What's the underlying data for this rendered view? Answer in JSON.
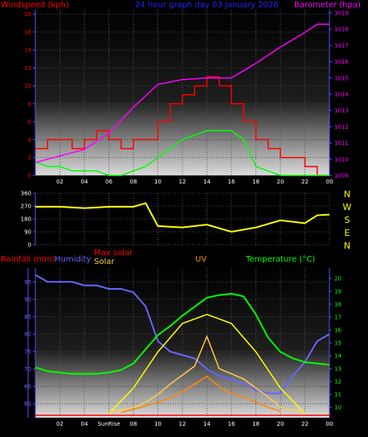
{
  "title": "24 hour graph day   03 January 2026",
  "colors": {
    "wind": "#ff0000",
    "gust": "#00ff00",
    "baro": "#ff00ff",
    "dir": "#ffff00",
    "rain": "#ff0000",
    "hum": "#6666ff",
    "maxsolar": "#ffff00",
    "solar": "#ffcc44",
    "uv": "#ff8800",
    "temp": "#00ff00",
    "axis": "#5555ff",
    "text": "#ffffff"
  },
  "labels": {
    "windspeed": "Windspeed (kph)",
    "barometer": "Barometer (hpa)",
    "rainfall": "Rainfall (mm)",
    "humidity": "Humidity",
    "maxsolar": "Max solar",
    "solar": "Solar",
    "uv": "UV",
    "temperature": "Temperature (°C)",
    "sunrise": "SunRise"
  },
  "compass": [
    "N",
    "W",
    "S",
    "E",
    "N"
  ],
  "chart_data": [
    {
      "type": "line",
      "title": "24 hour graph day   03 January 2026",
      "xticks": [
        "02",
        "04",
        "06",
        "08",
        "10",
        "12",
        "14",
        "16",
        "18",
        "20",
        "22",
        "00"
      ],
      "ylabel_left": "Windspeed (kph)",
      "ylim_left": [
        0,
        18.5
      ],
      "yticks_left": [
        0,
        2,
        4,
        6,
        8,
        10,
        12,
        14,
        16,
        18
      ],
      "ylabel_right": "Barometer (hpa)",
      "ylim_right": [
        1009,
        1019.2
      ],
      "yticks_right": [
        1009,
        1010,
        1011,
        1012,
        1013,
        1014,
        1015,
        1016,
        1017,
        1018,
        1019
      ],
      "series": [
        {
          "name": "Windspeed (kph)",
          "axis": "left",
          "x": [
            0,
            1,
            2,
            3,
            4,
            5,
            6,
            7,
            8,
            9,
            10,
            11,
            12,
            13,
            14,
            15,
            16,
            17,
            18,
            19,
            20,
            21,
            22,
            23,
            24
          ],
          "values": [
            3,
            4,
            4,
            3,
            4,
            5,
            4,
            3,
            4,
            4,
            6,
            8,
            9,
            10,
            11,
            10,
            8,
            6,
            4,
            3,
            2,
            2,
            1,
            0,
            0
          ]
        },
        {
          "name": "Gust",
          "axis": "left",
          "x": [
            0,
            1,
            2,
            3,
            4,
            5,
            6,
            7,
            8,
            9,
            10,
            11,
            12,
            13,
            14,
            15,
            16,
            17,
            18,
            19,
            20,
            21,
            22,
            23,
            24
          ],
          "values": [
            1.5,
            1,
            1,
            0.5,
            0.5,
            0.5,
            0,
            0,
            0.5,
            1,
            2,
            3,
            4,
            4.5,
            5,
            5,
            5,
            4,
            1,
            0.5,
            0,
            0,
            0,
            0,
            0
          ]
        },
        {
          "name": "Barometer (hpa)",
          "axis": "right",
          "x": [
            0,
            2,
            4,
            6,
            8,
            10,
            12,
            14,
            16,
            18,
            20,
            22,
            23,
            24
          ],
          "values": [
            1009.8,
            1010.2,
            1010.6,
            1011.6,
            1013.2,
            1014.6,
            1014.9,
            1015.0,
            1015.0,
            1015.9,
            1016.9,
            1017.8,
            1018.3,
            1018.3
          ]
        }
      ]
    },
    {
      "type": "line",
      "xticks": [
        "02",
        "04",
        "06",
        "08",
        "10",
        "12",
        "14",
        "16",
        "18",
        "20",
        "22",
        "00"
      ],
      "ylim": [
        0,
        360
      ],
      "yticks": [
        0,
        90,
        180,
        270,
        360
      ],
      "series": [
        {
          "name": "Wind direction",
          "x": [
            0,
            2,
            4,
            6,
            8,
            9,
            10,
            12,
            14,
            16,
            18,
            20,
            22,
            23,
            24
          ],
          "values": [
            265,
            265,
            255,
            265,
            265,
            290,
            130,
            120,
            140,
            90,
            120,
            170,
            150,
            205,
            210
          ]
        }
      ]
    },
    {
      "type": "line",
      "xticks": [
        "02",
        "04",
        "SunRise",
        "08",
        "10",
        "12",
        "14",
        "16",
        "18",
        "20",
        "22",
        "00"
      ],
      "ylabel_left": "Humidity",
      "ylim_left": [
        56,
        99
      ],
      "yticks_left": [
        60,
        65,
        70,
        75,
        80,
        85,
        90,
        95
      ],
      "ylabel_right": "Temperature (°C)",
      "ylim_right": [
        9.2,
        20.8
      ],
      "yticks_right": [
        10,
        11,
        12,
        13,
        14,
        15,
        16,
        17,
        18,
        19,
        20
      ],
      "series": [
        {
          "name": "Humidity",
          "axis": "left",
          "x": [
            0,
            1,
            2,
            3,
            4,
            5,
            6,
            7,
            8,
            9,
            10,
            11,
            12,
            13,
            14,
            15,
            16,
            17,
            18,
            19,
            20,
            21,
            22,
            23,
            24
          ],
          "values": [
            97,
            95,
            95,
            95,
            94,
            94,
            93,
            93,
            92,
            88,
            78,
            75,
            74,
            73,
            70,
            68,
            67,
            66,
            64,
            63,
            63,
            68,
            72,
            78,
            80
          ]
        },
        {
          "name": "Temperature (°C)",
          "axis": "right",
          "x": [
            0,
            1,
            2,
            3,
            4,
            5,
            6,
            7,
            8,
            9,
            10,
            11,
            12,
            13,
            14,
            15,
            16,
            17,
            18,
            19,
            20,
            21,
            22,
            23,
            24
          ],
          "values": [
            13.1,
            12.8,
            12.7,
            12.6,
            12.6,
            12.6,
            12.7,
            12.9,
            13.4,
            14.5,
            15.6,
            16.3,
            17.1,
            17.8,
            18.5,
            18.7,
            18.8,
            18.6,
            17.2,
            15.4,
            14.3,
            13.8,
            13.5,
            13.4,
            13.3
          ]
        },
        {
          "name": "Max solar",
          "axis": "right",
          "x": [
            6,
            8,
            10,
            12,
            14,
            16,
            18,
            20,
            22
          ],
          "values": [
            9.5,
            11.5,
            14.3,
            16.5,
            17.2,
            16.5,
            14.3,
            11.5,
            9.5
          ]
        },
        {
          "name": "Solar",
          "axis": "right",
          "x": [
            6,
            8,
            9,
            10,
            11,
            12,
            13,
            14,
            15,
            16,
            17,
            18,
            19,
            20,
            22
          ],
          "values": [
            9.6,
            10.0,
            10.4,
            11.0,
            11.8,
            12.5,
            13.2,
            15.5,
            13.0,
            12.6,
            12.2,
            11.5,
            10.8,
            10.0,
            9.6
          ]
        },
        {
          "name": "UV",
          "axis": "right",
          "x": [
            7,
            9,
            11,
            12,
            13,
            14,
            15,
            16,
            17,
            18,
            19,
            20
          ],
          "values": [
            9.6,
            10.1,
            10.7,
            11.2,
            11.8,
            12.4,
            11.6,
            11.1,
            10.8,
            10.4,
            10.0,
            9.7
          ]
        }
      ]
    }
  ]
}
